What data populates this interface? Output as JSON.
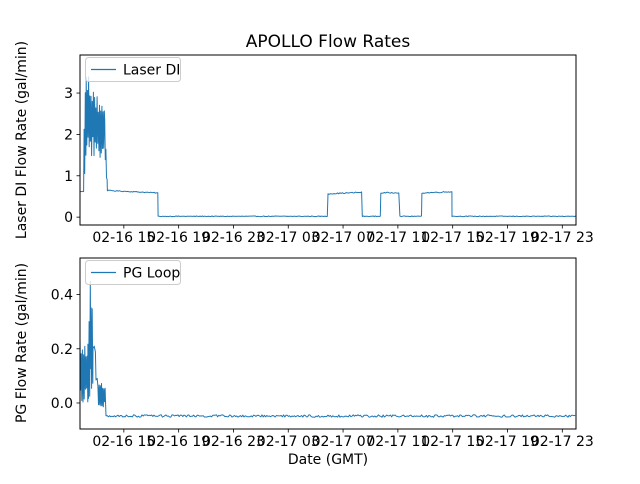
{
  "figure": {
    "title": "APOLLO Flow Rates",
    "background": "#ffffff",
    "line_color": "#1f77b4",
    "legend_border_color": "#cccccc",
    "text_color": "#000000"
  },
  "chart_data": [
    {
      "type": "line",
      "title": "APOLLO Flow Rates",
      "ylabel": "Laser DI Flow Rate (gal/min)",
      "legend": "Laser DI",
      "legend_position": "upper left",
      "grid": false,
      "x_unit": "hours since 02-16 00:00 (GMT)",
      "xlim": [
        11.8,
        48.0
      ],
      "ylim": [
        -0.19,
        3.92
      ],
      "xticks": [
        15,
        19,
        23,
        27,
        31,
        35,
        39,
        43,
        47
      ],
      "xticklabels": [
        "02-16 15",
        "02-16 19",
        "02-16 23",
        "02-17 03",
        "02-17 07",
        "02-17 11",
        "02-17 15",
        "02-17 19",
        "02-17 23"
      ],
      "yticks": [
        0,
        1,
        2,
        3
      ],
      "yticklabels": [
        "0",
        "1",
        "2",
        "3"
      ],
      "segments": [
        {
          "t": [
            11.8,
            12.1
          ],
          "kind": "line",
          "v": [
            0.62,
            0.62
          ],
          "noise": 0.008
        },
        {
          "t": [
            12.1,
            12.25
          ],
          "kind": "band",
          "lo": [
            0.62,
            1.5
          ],
          "hi": [
            2.6,
            3.55
          ]
        },
        {
          "t": [
            12.25,
            13.05
          ],
          "kind": "band",
          "lo": [
            1.45,
            1.45
          ],
          "hi": [
            3.55,
            3.0
          ]
        },
        {
          "t": [
            13.05,
            13.6
          ],
          "kind": "band",
          "lo": [
            1.4,
            1.4
          ],
          "hi": [
            3.0,
            2.7
          ]
        },
        {
          "t": [
            13.6,
            13.8
          ],
          "kind": "band",
          "lo": [
            1.3,
            0.66
          ],
          "hi": [
            2.4,
            0.72
          ]
        },
        {
          "t": [
            13.8,
            17.5
          ],
          "kind": "line",
          "v": [
            0.645,
            0.585
          ],
          "noise": 0.01
        },
        {
          "t": [
            17.5,
            29.9
          ],
          "kind": "line",
          "v": [
            0.02,
            0.02
          ],
          "noise": 0.008
        },
        {
          "t": [
            29.9,
            32.4
          ],
          "kind": "line",
          "v": [
            0.565,
            0.6
          ],
          "noise": 0.013
        },
        {
          "t": [
            32.4,
            33.75
          ],
          "kind": "line",
          "v": [
            0.02,
            0.02
          ],
          "noise": 0.008
        },
        {
          "t": [
            33.75,
            35.15
          ],
          "kind": "line",
          "v": [
            0.585,
            0.595
          ],
          "noise": 0.013
        },
        {
          "t": [
            35.15,
            36.75
          ],
          "kind": "line",
          "v": [
            0.02,
            0.02
          ],
          "noise": 0.008
        },
        {
          "t": [
            36.75,
            38.95
          ],
          "kind": "line",
          "v": [
            0.585,
            0.615
          ],
          "noise": 0.013
        },
        {
          "t": [
            38.95,
            48.0
          ],
          "kind": "line",
          "v": [
            0.02,
            0.02
          ],
          "noise": 0.008
        }
      ]
    },
    {
      "type": "line",
      "ylabel": "PG Flow Rate (gal/min)",
      "xlabel": "Date (GMT)",
      "legend": "PG Loop",
      "legend_position": "upper left",
      "grid": false,
      "x_unit": "hours since 02-16 00:00 (GMT)",
      "xlim": [
        11.8,
        48.0
      ],
      "ylim": [
        -0.096,
        0.535
      ],
      "xticks": [
        15,
        19,
        23,
        27,
        31,
        35,
        39,
        43,
        47
      ],
      "xticklabels": [
        "02-16 15",
        "02-16 19",
        "02-16 23",
        "02-17 03",
        "02-17 07",
        "02-17 11",
        "02-17 15",
        "02-17 19",
        "02-17 23"
      ],
      "yticks": [
        0.0,
        0.2,
        0.4
      ],
      "yticklabels": [
        "0.0",
        "0.2",
        "0.4"
      ],
      "segments": [
        {
          "t": [
            11.8,
            12.38
          ],
          "kind": "band",
          "lo": [
            -0.015,
            -0.02
          ],
          "hi": [
            0.24,
            0.25
          ]
        },
        {
          "t": [
            12.38,
            12.6
          ],
          "kind": "band",
          "lo": [
            -0.02,
            0.0
          ],
          "hi": [
            0.3,
            0.51
          ]
        },
        {
          "t": [
            12.6,
            12.75
          ],
          "kind": "band",
          "lo": [
            0.0,
            0.05
          ],
          "hi": [
            0.45,
            0.28
          ]
        },
        {
          "t": [
            12.75,
            12.97
          ],
          "kind": "line",
          "v": [
            0.21,
            0.19
          ],
          "noise": 0.012
        },
        {
          "t": [
            12.97,
            13.11
          ],
          "kind": "line",
          "v": [
            0.085,
            0.085
          ],
          "noise": 0.008
        },
        {
          "t": [
            13.11,
            13.7
          ],
          "kind": "band",
          "lo": [
            -0.02,
            -0.02
          ],
          "hi": [
            0.08,
            0.07
          ]
        },
        {
          "t": [
            13.7,
            48.0
          ],
          "kind": "line",
          "v": [
            -0.048,
            -0.048
          ],
          "noise": 0.0045
        }
      ]
    }
  ]
}
